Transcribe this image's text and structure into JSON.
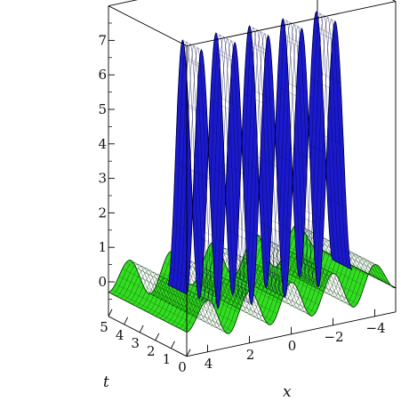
{
  "chart_data": {
    "type": "surface3d",
    "title": "",
    "axes": {
      "x": {
        "label": "x",
        "ticks": [
          4,
          2,
          0,
          -2,
          -4
        ],
        "tick_labels": [
          "4",
          "2",
          "0",
          "−2",
          "−4"
        ],
        "range": [
          -5,
          5
        ]
      },
      "t": {
        "label": "t",
        "ticks": [
          0,
          1,
          2,
          3,
          4,
          5
        ],
        "tick_labels": [
          "0",
          "1",
          "2",
          "3",
          "4",
          "5"
        ],
        "range": [
          0,
          5
        ]
      },
      "z": {
        "ticks": [
          0,
          1,
          2,
          3,
          4,
          5,
          6,
          7
        ],
        "tick_labels": [
          "0",
          "1",
          "2",
          "3",
          "4",
          "5",
          "6",
          "7"
        ],
        "range": [
          -1,
          8
        ]
      }
    },
    "surfaces": [
      {
        "color": "#1a1acc",
        "edge_color": "#000044",
        "z_min": 0,
        "z_max": 7.8,
        "t_length": 1.2,
        "samples_along_x": [
          {
            "x": 5.0,
            "z": 0.8
          },
          {
            "x": 4.3,
            "z": 7.8
          },
          {
            "x": 3.5,
            "z": 0.2
          },
          {
            "x": 2.7,
            "z": 7.8
          },
          {
            "x": 1.9,
            "z": 0.1
          },
          {
            "x": 1.1,
            "z": 7.8
          },
          {
            "x": 0.3,
            "z": 0.1
          },
          {
            "x": -0.5,
            "z": 7.8
          },
          {
            "x": -1.3,
            "z": 0.2
          },
          {
            "x": -2.1,
            "z": 7.8
          },
          {
            "x": -2.9,
            "z": 0.5
          }
        ]
      },
      {
        "color": "#33dd22",
        "edge_color": "#003300",
        "z_min": -1,
        "z_max": 0.6,
        "t_length": 5,
        "samples_along_x": [
          {
            "x": 5.0,
            "z": -0.3
          },
          {
            "x": 4.0,
            "z": 0.5
          },
          {
            "x": 3.0,
            "z": -0.6
          },
          {
            "x": 2.0,
            "z": 0.5
          },
          {
            "x": 1.0,
            "z": -0.6
          },
          {
            "x": 0.0,
            "z": 0.5
          },
          {
            "x": -1.0,
            "z": -0.6
          },
          {
            "x": -2.0,
            "z": 0.5
          },
          {
            "x": -3.0,
            "z": -0.6
          },
          {
            "x": -4.0,
            "z": 0.5
          },
          {
            "x": -5.0,
            "z": -0.3
          }
        ]
      }
    ],
    "box": true,
    "grid": false,
    "legend": "none"
  }
}
